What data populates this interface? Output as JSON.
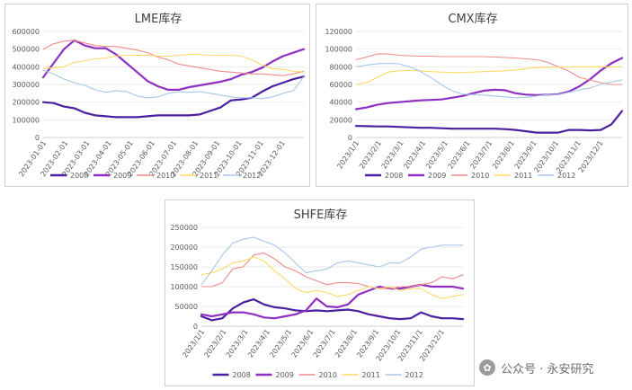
{
  "watermark": {
    "text": "公众号 · 永安研究"
  },
  "chart_data": [
    {
      "type": "line",
      "id": "lme",
      "title": "LME库存",
      "xlabels": [
        "2023-01-01",
        "2023-02-01",
        "2023-03-01",
        "2023-04-01",
        "2023-05-01",
        "2023-06-01",
        "2023-07-01",
        "2023-08-01",
        "2023-09-01",
        "2023-10-01",
        "2023-11-01",
        "2023-12-01"
      ],
      "yticks": [
        0,
        100000,
        200000,
        300000,
        400000,
        500000,
        600000
      ],
      "ylim": [
        0,
        600000
      ],
      "ytick_labels": [
        "0",
        "100000",
        "200000",
        "300000",
        "400000",
        "500000",
        "600000"
      ],
      "legend_position": "bottom",
      "series": [
        {
          "name": "2008",
          "color": "#4b1fa0",
          "width": 2.2,
          "values": [
            200000,
            195000,
            175000,
            165000,
            140000,
            125000,
            120000,
            115000,
            115000,
            115000,
            120000,
            125000,
            125000,
            125000,
            125000,
            130000,
            150000,
            170000,
            210000,
            215000,
            225000,
            260000,
            290000,
            310000,
            330000,
            345000
          ]
        },
        {
          "name": "2009",
          "color": "#8e2fc2",
          "width": 2.2,
          "values": [
            340000,
            420000,
            500000,
            550000,
            520000,
            505000,
            505000,
            470000,
            420000,
            370000,
            320000,
            290000,
            270000,
            270000,
            285000,
            295000,
            305000,
            315000,
            330000,
            355000,
            370000,
            395000,
            430000,
            460000,
            480000,
            500000
          ]
        },
        {
          "name": "2010",
          "color": "#f08a8a",
          "width": 1.1,
          "values": [
            500000,
            530000,
            545000,
            550000,
            535000,
            520000,
            515000,
            515000,
            505000,
            495000,
            480000,
            455000,
            440000,
            415000,
            405000,
            395000,
            385000,
            375000,
            370000,
            365000,
            360000,
            360000,
            355000,
            350000,
            360000,
            375000
          ]
        },
        {
          "name": "2011",
          "color": "#ffd86a",
          "width": 1.1,
          "values": [
            390000,
            395000,
            400000,
            425000,
            435000,
            445000,
            450000,
            460000,
            465000,
            465000,
            465000,
            460000,
            460000,
            465000,
            470000,
            470000,
            465000,
            465000,
            465000,
            460000,
            440000,
            410000,
            390000,
            385000,
            375000,
            370000
          ]
        },
        {
          "name": "2012",
          "color": "#a8c8e8",
          "width": 1.1,
          "values": [
            380000,
            360000,
            330000,
            310000,
            295000,
            270000,
            255000,
            265000,
            260000,
            235000,
            225000,
            230000,
            250000,
            260000,
            255000,
            260000,
            250000,
            240000,
            230000,
            225000,
            225000,
            220000,
            230000,
            250000,
            265000,
            345000
          ]
        }
      ]
    },
    {
      "type": "line",
      "id": "cmx",
      "title": "CMX库存",
      "xlabels": [
        "2023/1/1",
        "2023/2/1",
        "2023/3/1",
        "2023/4/1",
        "2023/5/1",
        "2023/6/1",
        "2023/7/1",
        "2023/8/1",
        "2023/9/1",
        "2023/10/1",
        "2023/11/1",
        "2023/12/1"
      ],
      "yticks": [
        0,
        20000,
        40000,
        60000,
        80000,
        100000,
        120000
      ],
      "ylim": [
        0,
        120000
      ],
      "ytick_labels": [
        "0",
        "20000",
        "40000",
        "60000",
        "80000",
        "100000",
        "120000"
      ],
      "legend_position": "bottom",
      "series": [
        {
          "name": "2008",
          "color": "#4b1fa0",
          "width": 2.2,
          "values": [
            13000,
            12800,
            12500,
            12500,
            12000,
            11500,
            11000,
            11000,
            10500,
            10000,
            10000,
            10000,
            10000,
            10000,
            9500,
            8500,
            7000,
            5500,
            5500,
            5500,
            8500,
            8500,
            8000,
            8500,
            15000,
            30000
          ]
        },
        {
          "name": "2009",
          "color": "#8e2fc2",
          "width": 2.2,
          "values": [
            32000,
            34000,
            37000,
            39000,
            40000,
            41000,
            42000,
            42500,
            43000,
            45000,
            47000,
            50000,
            53000,
            54000,
            53500,
            50000,
            48500,
            48000,
            48500,
            49000,
            52000,
            58000,
            66000,
            76000,
            84000,
            90000
          ]
        },
        {
          "name": "2010",
          "color": "#f08a8a",
          "width": 1.1,
          "values": [
            88000,
            91000,
            94500,
            94500,
            93000,
            92500,
            92000,
            92000,
            91500,
            91500,
            91500,
            91500,
            91500,
            91000,
            90500,
            90000,
            89000,
            88000,
            85000,
            80000,
            75000,
            68000,
            65000,
            62000,
            60000,
            60000
          ]
        },
        {
          "name": "2011",
          "color": "#ffd86a",
          "width": 1.1,
          "values": [
            60000,
            62000,
            68000,
            74000,
            75500,
            76000,
            75500,
            74500,
            74000,
            73500,
            73500,
            74000,
            74500,
            75000,
            75500,
            76500,
            78000,
            79000,
            79500,
            79500,
            80000,
            80000,
            80000,
            80000,
            80000,
            80000
          ]
        },
        {
          "name": "2012",
          "color": "#a8c8e8",
          "width": 1.1,
          "values": [
            80000,
            82000,
            83500,
            84000,
            83500,
            80000,
            75000,
            68000,
            60000,
            53000,
            49000,
            48500,
            48000,
            47000,
            46000,
            45000,
            45500,
            47000,
            48500,
            48500,
            51000,
            54000,
            56000,
            60000,
            63000,
            65000
          ]
        }
      ]
    },
    {
      "type": "line",
      "id": "shfe",
      "title": "SHFE库存",
      "xlabels": [
        "2023/1/1",
        "2023/2/1",
        "2023/3/1",
        "2023/4/1",
        "2023/5/1",
        "2023/6/1",
        "2023/7/1",
        "2023/8/1",
        "2023/9/1",
        "2023/10/1",
        "2023/11/1",
        "2023/12/1"
      ],
      "yticks": [
        0,
        50000,
        100000,
        150000,
        200000,
        250000
      ],
      "ylim": [
        0,
        250000
      ],
      "ytick_labels": [
        "0",
        "50000",
        "100000",
        "150000",
        "200000",
        "250000"
      ],
      "legend_position": "bottom",
      "series": [
        {
          "name": "2008",
          "color": "#4b1fa0",
          "width": 2.2,
          "values": [
            25000,
            15000,
            20000,
            45000,
            60000,
            68000,
            55000,
            48000,
            45000,
            40000,
            38000,
            40000,
            38000,
            40000,
            42000,
            38000,
            30000,
            25000,
            20000,
            18000,
            20000,
            35000,
            25000,
            20000,
            20000,
            18000
          ]
        },
        {
          "name": "2009",
          "color": "#8e2fc2",
          "width": 2.2,
          "values": [
            30000,
            25000,
            30000,
            35000,
            35000,
            30000,
            22000,
            20000,
            25000,
            30000,
            40000,
            70000,
            50000,
            48000,
            55000,
            80000,
            90000,
            100000,
            95000,
            95000,
            100000,
            105000,
            100000,
            100000,
            100000,
            95000
          ]
        },
        {
          "name": "2010",
          "color": "#f08a8a",
          "width": 1.1,
          "values": [
            100000,
            100000,
            110000,
            145000,
            150000,
            180000,
            185000,
            170000,
            150000,
            140000,
            125000,
            115000,
            105000,
            110000,
            110000,
            108000,
            100000,
            95000,
            95000,
            100000,
            100000,
            105000,
            110000,
            125000,
            120000,
            130000
          ]
        },
        {
          "name": "2011",
          "color": "#ffd86a",
          "width": 1.1,
          "values": [
            130000,
            135000,
            145000,
            160000,
            165000,
            175000,
            165000,
            140000,
            120000,
            95000,
            85000,
            90000,
            85000,
            75000,
            80000,
            90000,
            100000,
            95000,
            100000,
            90000,
            95000,
            95000,
            80000,
            70000,
            75000,
            80000
          ]
        },
        {
          "name": "2012",
          "color": "#a8c8e8",
          "width": 1.1,
          "values": [
            105000,
            140000,
            180000,
            210000,
            220000,
            225000,
            215000,
            205000,
            185000,
            160000,
            135000,
            140000,
            145000,
            160000,
            165000,
            160000,
            155000,
            150000,
            160000,
            160000,
            175000,
            195000,
            200000,
            205000,
            205000,
            205000
          ]
        }
      ]
    }
  ]
}
